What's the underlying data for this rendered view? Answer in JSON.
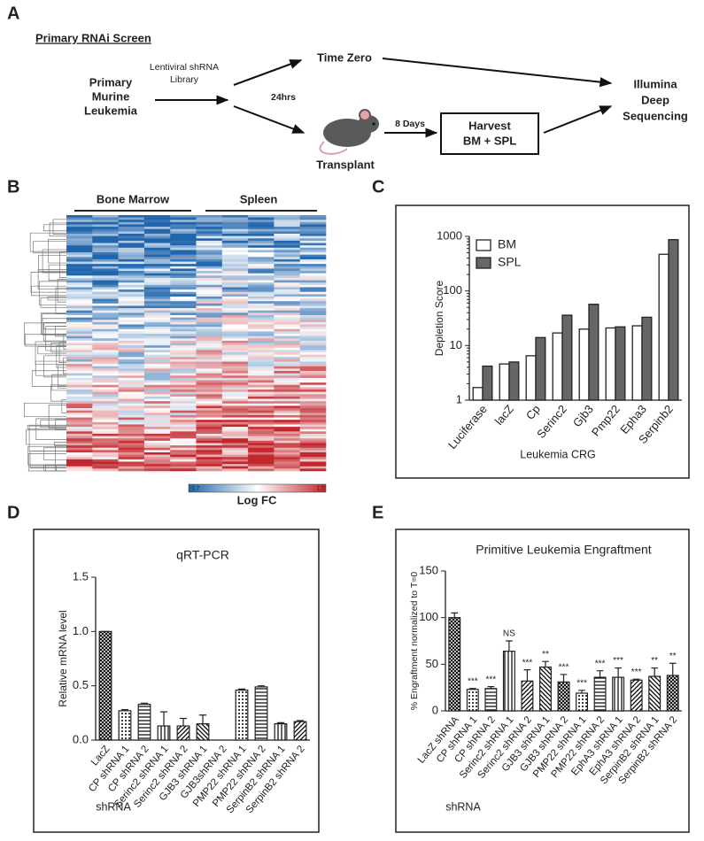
{
  "panel_labels": [
    "A",
    "B",
    "C",
    "D",
    "E"
  ],
  "diagram": {
    "title": "Primary RNAi Screen",
    "leukemia": [
      "Primary",
      "Murine",
      "Leukemia"
    ],
    "library": [
      "Lentiviral shRNA",
      "Library"
    ],
    "time_zero": "Time Zero",
    "hours": "24hrs",
    "transplant": "Transplant",
    "days": "8 Days",
    "harvest": [
      "Harvest",
      "BM + SPL"
    ],
    "sequencing": [
      "Illumina",
      "Deep",
      "Sequencing"
    ]
  },
  "heatmap": {
    "headers": [
      "Bone Marrow",
      "Spleen"
    ],
    "colorbar_min": "-1.7",
    "colorbar_max": "1.7",
    "colorbar_label": "Log FC"
  },
  "chart_data": [
    {
      "type": "bar",
      "yscale": "log",
      "ylabel": "Depletion Score",
      "xlabel": "Leukemia CRG",
      "categories": [
        "Luciferase",
        "lacZ",
        "Cp",
        "Serinc2",
        "Gjb3",
        "Pmp22",
        "Epha3",
        "Serpinb2"
      ],
      "series": [
        {
          "name": "BM",
          "color": "#ffffff",
          "values": [
            1.7,
            4.6,
            6.5,
            17,
            20,
            21,
            23,
            470
          ]
        },
        {
          "name": "SPL",
          "color": "#666666",
          "values": [
            4.2,
            5,
            14,
            36,
            57,
            22,
            33,
            870
          ]
        }
      ],
      "ylim": [
        1,
        1000
      ],
      "yticks": [
        1,
        10,
        100,
        1000
      ],
      "legend": "upper left"
    },
    {
      "type": "bar",
      "title": "qRT-PCR",
      "ylabel": "Relative mRNA level",
      "xlabel": "shRNA",
      "categories": [
        "LacZ",
        "CP shRNA 1",
        "CP shRNA 2",
        "Serinc2 shRNA 1",
        "Serinc2 shRNA 2",
        "GJB3 shRNA 1",
        "GJB3shRNA 2",
        "PMP22 shRNA 1",
        "PMP22 shRNA 2",
        "SerpinB2 shRNA 1",
        "SerpinB2 shRNA 2"
      ],
      "values": [
        1.0,
        0.27,
        0.33,
        0.13,
        0.13,
        0.15,
        null,
        0.46,
        0.49,
        0.15,
        0.17
      ],
      "errors": [
        0,
        0.01,
        0.01,
        0.13,
        0.07,
        0.08,
        null,
        0.01,
        0.01,
        0.01,
        0.01
      ],
      "ylim": [
        0,
        1.5
      ],
      "yticks": [
        {
          "value": 0,
          "label": "0.0"
        },
        {
          "value": 0.5,
          "label": "0.5"
        },
        {
          "value": 1,
          "label": "1.0"
        },
        {
          "value": 1.5,
          "label": "1.5"
        }
      ]
    },
    {
      "type": "bar",
      "title": "Primitive Leukemia Engraftment",
      "ylabel": "% Engraftment normalized to T=0",
      "xlabel": "shRNA",
      "categories": [
        "LacZ shRNA",
        "CP shRNA 1",
        "CP shRNA 2",
        "Serinc2 shRNA 1",
        "Serinc2 shRNA 2",
        "GJB3 shRNA 1",
        "GJB3 shRNA 2",
        "PMP22 shRNA 1",
        "PMP22 shRNA 2",
        "EphA3 shRNA 1",
        "EphA3 shRNA 2",
        "SerpinB2 shRNA 1",
        "SerpinB2 shRNA 2"
      ],
      "values": [
        100,
        23,
        24,
        64,
        32,
        47,
        31,
        19,
        36,
        36,
        33,
        37,
        38
      ],
      "errors": [
        5,
        1,
        2,
        11,
        12,
        6,
        8,
        3,
        7,
        10,
        1,
        9,
        13
      ],
      "annotations": [
        null,
        "***",
        "***",
        "NS",
        "***",
        "**",
        "***",
        "***",
        "***",
        "***",
        "***",
        "**",
        "**"
      ],
      "ylim": [
        0,
        150
      ],
      "yticks": [
        0,
        50,
        100,
        150
      ]
    }
  ]
}
